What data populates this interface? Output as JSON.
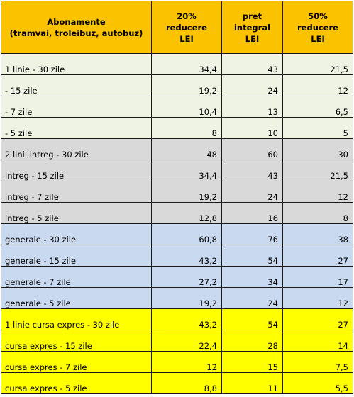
{
  "header": {
    "col_name": "Abonamente\n(tramvai, troleibuz, autobuz)",
    "col_discount20": "20%\nreducere\nLEI",
    "col_full": "pret\nintegral\nLEI",
    "col_discount50": "50%\nreducere\nLEI"
  },
  "colors": {
    "header": "#fbc200",
    "group_1_line": "#eef3e4",
    "group_2_lines": "#d9d9d9",
    "group_general": "#c9d9ef",
    "group_express": "#ffff00"
  },
  "rows": [
    {
      "group": "green",
      "name": "1 linie - 30 zile",
      "d20": "34,4",
      "full": "43",
      "d50": "21,5"
    },
    {
      "group": "green",
      "name": " - 15 zile",
      "d20": "19,2",
      "full": "24",
      "d50": "12"
    },
    {
      "group": "green",
      "name": "- 7 zile",
      "d20": "10,4",
      "full": "13",
      "d50": "6,5"
    },
    {
      "group": "green",
      "name": "- 5 zile",
      "d20": "8",
      "full": "10",
      "d50": "5"
    },
    {
      "group": "gray",
      "name": "2 linii intreg - 30 zile",
      "d20": "48",
      "full": "60",
      "d50": "30"
    },
    {
      "group": "gray",
      "name": "intreg - 15 zile",
      "d20": "34,4",
      "full": "43",
      "d50": "21,5"
    },
    {
      "group": "gray",
      "name": "intreg - 7 zile",
      "d20": "19,2",
      "full": "24",
      "d50": "12"
    },
    {
      "group": "gray",
      "name": "intreg - 5 zile",
      "d20": "12,8",
      "full": "16",
      "d50": "8"
    },
    {
      "group": "blue",
      "name": "generale - 30 zile",
      "d20": "60,8",
      "full": "76",
      "d50": "38"
    },
    {
      "group": "blue",
      "name": "generale - 15 zile",
      "d20": "43,2",
      "full": "54",
      "d50": "27"
    },
    {
      "group": "blue",
      "name": "generale - 7 zile",
      "d20": "27,2",
      "full": "34",
      "d50": "17"
    },
    {
      "group": "blue",
      "name": "generale - 5 zile",
      "d20": "19,2",
      "full": "24",
      "d50": "12"
    },
    {
      "group": "yellow",
      "name": "1 linie cursa expres - 30 zile",
      "d20": "43,2",
      "full": "54",
      "d50": "27"
    },
    {
      "group": "yellow",
      "name": "cursa expres - 15 zile",
      "d20": "22,4",
      "full": "28",
      "d50": "14"
    },
    {
      "group": "yellow",
      "name": "cursa expres - 7 zile",
      "d20": "12",
      "full": "15",
      "d50": "7,5"
    },
    {
      "group": "yellow",
      "name": "cursa expres - 5 zile",
      "d20": "8,8",
      "full": "11",
      "d50": "5,5"
    }
  ]
}
